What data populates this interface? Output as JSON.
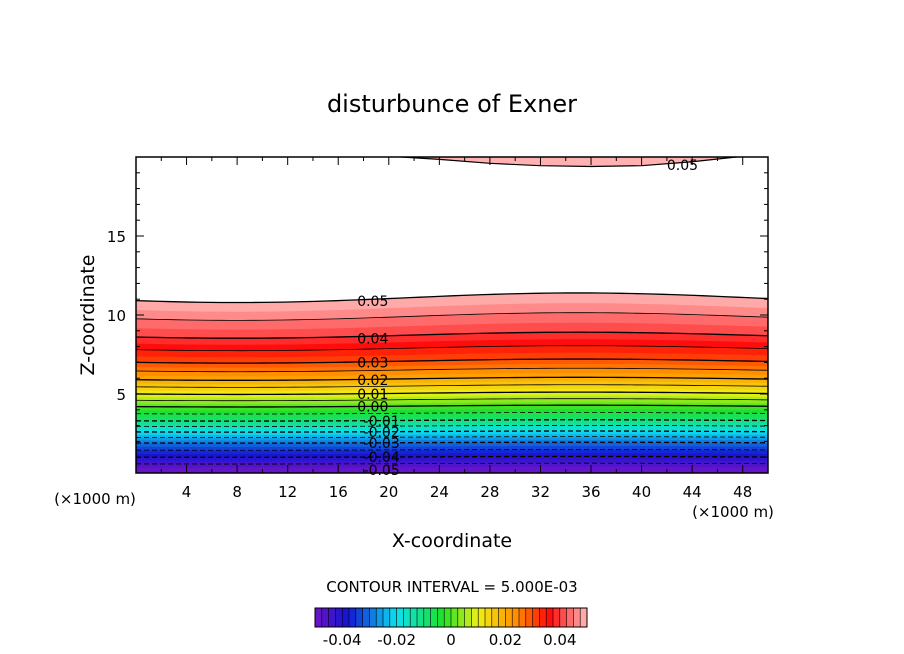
{
  "chart_data": {
    "type": "contour",
    "title": "disturbunce of Exner",
    "xlabel": "X-coordinate",
    "ylabel": "Z-coordinate",
    "x_unit_left": "(×1000 m)",
    "x_unit_right": "(×1000 m)",
    "xlim": [
      0,
      50
    ],
    "ylim": [
      0,
      20
    ],
    "x_ticks": [
      4,
      8,
      12,
      16,
      20,
      24,
      28,
      32,
      36,
      40,
      44,
      48
    ],
    "y_ticks": [
      5,
      10,
      15
    ],
    "contour_interval_label": "CONTOUR INTERVAL = 5.000E-03",
    "levels": [
      -0.045,
      -0.04,
      -0.035,
      -0.03,
      -0.025,
      -0.02,
      -0.015,
      -0.01,
      -0.005,
      0,
      0.005,
      0.01,
      0.015,
      0.02,
      0.025,
      0.03,
      0.035,
      0.04,
      0.045,
      0.05
    ],
    "contour_labels": [
      {
        "text": "0.05",
        "x": 17.5,
        "z": 10.9
      },
      {
        "text": "0.04",
        "x": 17.5,
        "z": 8.5
      },
      {
        "text": "0.03",
        "x": 17.5,
        "z": 7.0
      },
      {
        "text": "0.02",
        "x": 17.5,
        "z": 5.9
      },
      {
        "text": "0.01",
        "x": 17.5,
        "z": 5.0
      },
      {
        "text": "0.00",
        "x": 17.5,
        "z": 4.2
      },
      {
        "text": "-0.01",
        "x": 18,
        "z": 3.3
      },
      {
        "text": "-0.02",
        "x": 18,
        "z": 2.6
      },
      {
        "text": "-0.03",
        "x": 18,
        "z": 1.9
      },
      {
        "text": "-0.04",
        "x": 18,
        "z": 1.0
      },
      {
        "text": "-0.05",
        "x": 18,
        "z": 0.2
      },
      {
        "text": "0.05",
        "x": 42,
        "z": 19.5
      }
    ],
    "colorbar": {
      "range": [
        -0.05,
        0.05
      ],
      "tick_labels": [
        "-0.04",
        "-0.02",
        "0",
        "0.02",
        "0.04"
      ],
      "tick_values": [
        -0.04,
        -0.02,
        0,
        0.02,
        0.04
      ]
    },
    "colors": {
      "purple": "#7a10c8",
      "blue": "#1020e0",
      "cyan": "#10e0f0",
      "green": "#20e020",
      "yellow": "#f0f010",
      "orange": "#ff8c00",
      "red": "#ff0000",
      "pink": "#ffb0b0"
    }
  }
}
